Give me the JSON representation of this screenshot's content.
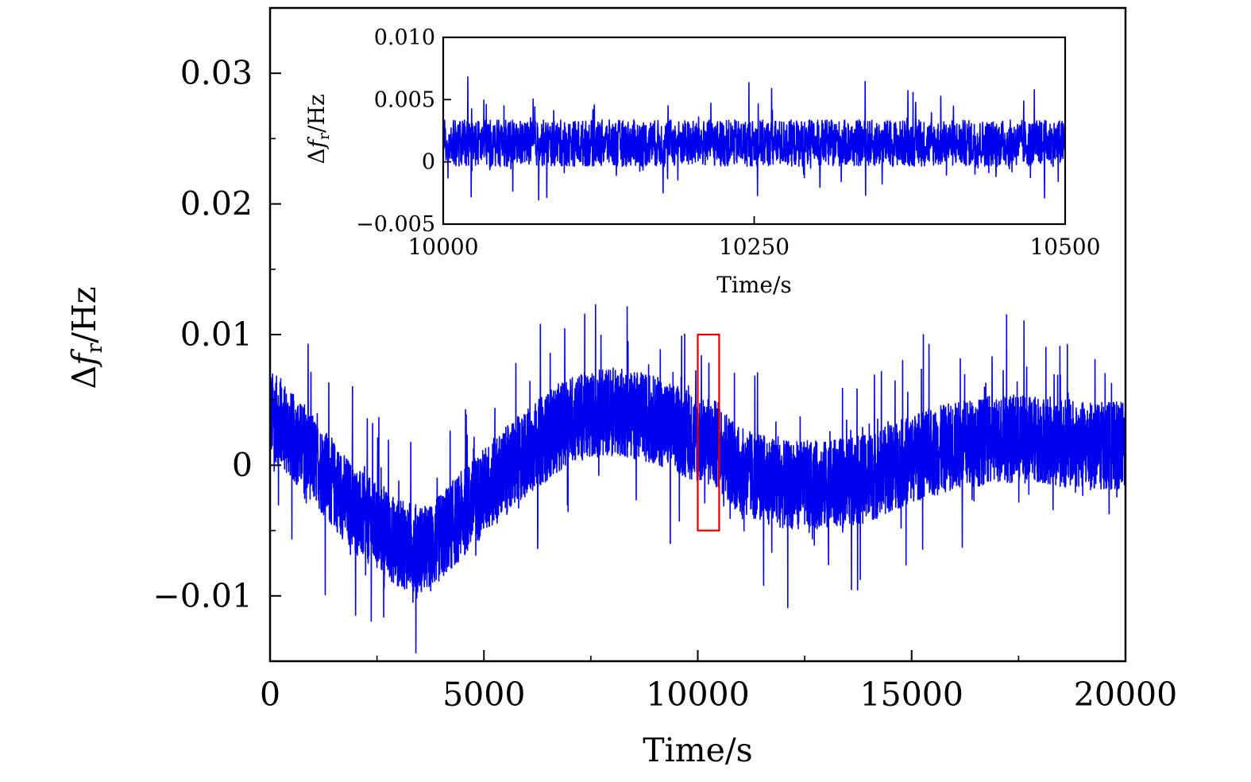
{
  "chart_data": [
    {
      "type": "line",
      "role": "main",
      "xlabel": "Time/s",
      "ylabel": "Δf_r/Hz",
      "ylabel_parts": {
        "delta": "Δ",
        "symbol": "f",
        "subscript": "r",
        "unit": "/Hz"
      },
      "xlim": [
        0,
        20000
      ],
      "ylim": [
        -0.015,
        0.035
      ],
      "xticks": [
        0,
        5000,
        10000,
        15000,
        20000
      ],
      "xtick_labels": [
        "0",
        "5000",
        "10000",
        "15000",
        "20000"
      ],
      "yticks": [
        -0.01,
        0,
        0.01,
        0.02,
        0.03
      ],
      "ytick_labels": [
        "−0.01",
        "0",
        "0.01",
        "0.02",
        "0.03"
      ],
      "series": [
        {
          "color": "#0000ee",
          "trend_x": [
            0,
            1000,
            2000,
            3000,
            3700,
            5000,
            6000,
            7000,
            8000,
            9000,
            10000,
            10500,
            11000,
            12000,
            13000,
            14000,
            15000,
            16000,
            17000,
            18000,
            19000,
            20000
          ],
          "trend_y": [
            0.004,
            0.0005,
            -0.0035,
            -0.006,
            -0.0065,
            -0.002,
            0.001,
            0.0035,
            0.0042,
            0.0035,
            0.002,
            0.0015,
            -0.0005,
            -0.0015,
            -0.0015,
            -0.001,
            0.0005,
            0.0015,
            0.002,
            0.002,
            0.0015,
            0.0015
          ],
          "noise_amplitude": 0.0045
        }
      ],
      "highlight_box": {
        "x": [
          10000,
          10500
        ],
        "y": [
          -0.005,
          0.01
        ],
        "color": "#e00000"
      }
    },
    {
      "type": "line",
      "role": "inset",
      "xlabel": "Time/s",
      "ylabel": "Δf_r/Hz",
      "ylabel_parts": {
        "delta": "Δ",
        "symbol": "f",
        "subscript": "r",
        "unit": "/Hz"
      },
      "xlim": [
        10000,
        10500
      ],
      "ylim": [
        -0.005,
        0.01
      ],
      "xticks": [
        10000,
        10250,
        10500
      ],
      "xtick_labels": [
        "10000",
        "10250",
        "10500"
      ],
      "yticks": [
        -0.005,
        0,
        0.005,
        0.01
      ],
      "ytick_labels": [
        "−0.005",
        "0",
        "0.005",
        "0.010"
      ],
      "series": [
        {
          "color": "#0000ee",
          "trend_x": [
            10000,
            10500
          ],
          "trend_y": [
            0.0015,
            0.0015
          ],
          "noise_amplitude": 0.0022
        }
      ]
    }
  ]
}
